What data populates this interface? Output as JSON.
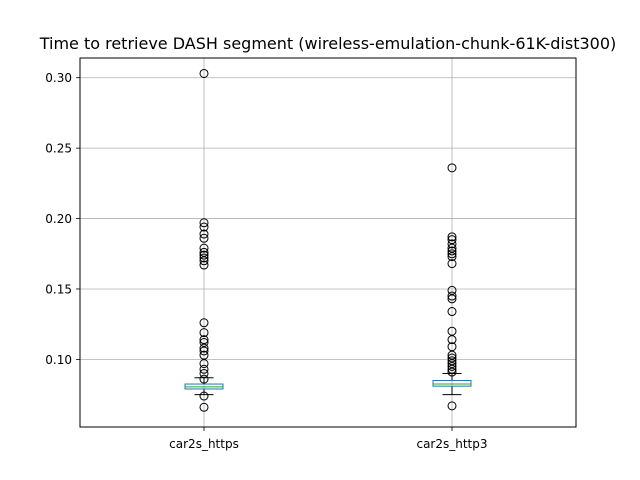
{
  "chart_data": {
    "type": "box",
    "title": "Time to retrieve DASH segment (wireless-emulation-chunk-61K-dist300)",
    "xlabel": "",
    "ylabel": "",
    "categories": [
      "car2s_https",
      "car2s_http3"
    ],
    "ylim": [
      0.052,
      0.314
    ],
    "yticks": [
      0.1,
      0.15,
      0.2,
      0.25,
      0.3
    ],
    "ytick_labels": [
      "0.10",
      "0.15",
      "0.20",
      "0.25",
      "0.30"
    ],
    "grid": true,
    "series": [
      {
        "whisker_low": 0.075,
        "q1": 0.079,
        "median": 0.0805,
        "q3": 0.0825,
        "whisker_high": 0.087,
        "outliers": [
          0.303,
          0.197,
          0.194,
          0.189,
          0.186,
          0.179,
          0.176,
          0.174,
          0.172,
          0.17,
          0.167,
          0.126,
          0.119,
          0.114,
          0.112,
          0.108,
          0.106,
          0.103,
          0.097,
          0.093,
          0.09,
          0.086,
          0.074,
          0.066
        ]
      },
      {
        "whisker_low": 0.075,
        "q1": 0.081,
        "median": 0.0825,
        "q3": 0.085,
        "whisker_high": 0.09,
        "outliers": [
          0.236,
          0.187,
          0.185,
          0.182,
          0.179,
          0.177,
          0.175,
          0.173,
          0.168,
          0.149,
          0.145,
          0.143,
          0.134,
          0.12,
          0.114,
          0.109,
          0.103,
          0.101,
          0.099,
          0.097,
          0.095,
          0.093,
          0.091,
          0.067
        ]
      }
    ],
    "colors": {
      "box": "#1f77b4",
      "median": "#2ca02c",
      "whisker": "#000000",
      "grid": "#b0b0b0",
      "outlier": "#000000"
    }
  }
}
